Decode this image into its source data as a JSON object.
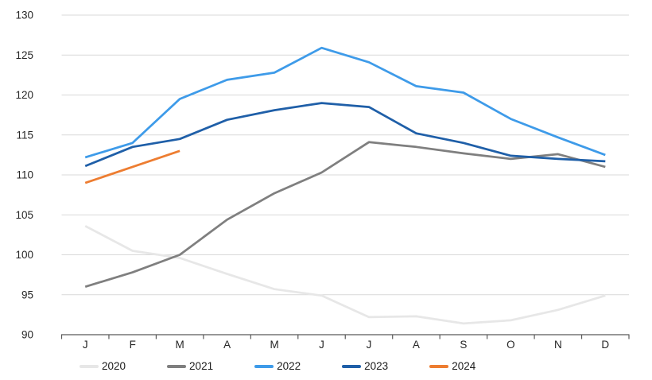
{
  "chart_data": {
    "type": "line",
    "title": "",
    "xlabel": "",
    "ylabel": "",
    "categories": [
      "J",
      "F",
      "M",
      "A",
      "M",
      "J",
      "J",
      "A",
      "S",
      "O",
      "N",
      "D"
    ],
    "ylim": [
      90,
      130
    ],
    "ytick_step": 5,
    "yticks": [
      90,
      95,
      100,
      105,
      110,
      115,
      120,
      125,
      130
    ],
    "grid": "horizontal",
    "legend_position": "bottom",
    "series": [
      {
        "name": "2020",
        "color": "#E7E7E7",
        "values": [
          103.6,
          100.5,
          99.6,
          97.6,
          95.7,
          94.9,
          92.2,
          92.3,
          91.4,
          91.8,
          93.1,
          94.9
        ]
      },
      {
        "name": "2021",
        "color": "#7F7F7F",
        "values": [
          96.0,
          97.8,
          100.0,
          104.4,
          107.7,
          110.3,
          114.1,
          113.5,
          112.7,
          112.0,
          112.6,
          111.0
        ]
      },
      {
        "name": "2022",
        "color": "#3E9BE9",
        "values": [
          112.2,
          114.0,
          119.5,
          121.9,
          122.8,
          125.9,
          124.1,
          121.1,
          120.3,
          117.0,
          114.7,
          112.5
        ]
      },
      {
        "name": "2023",
        "color": "#1F5FA8",
        "values": [
          111.1,
          113.5,
          114.5,
          116.9,
          118.1,
          119.0,
          118.5,
          115.2,
          114.0,
          112.4,
          112.0,
          111.7
        ]
      },
      {
        "name": "2024",
        "color": "#ED7D31",
        "values": [
          109.0,
          111.0,
          113.0
        ]
      }
    ],
    "style": {
      "grid_color": "#D9D9D9",
      "axis_color": "#595959",
      "text_color": "#262626",
      "background": "#FFFFFF",
      "line_width": 2.75
    }
  }
}
